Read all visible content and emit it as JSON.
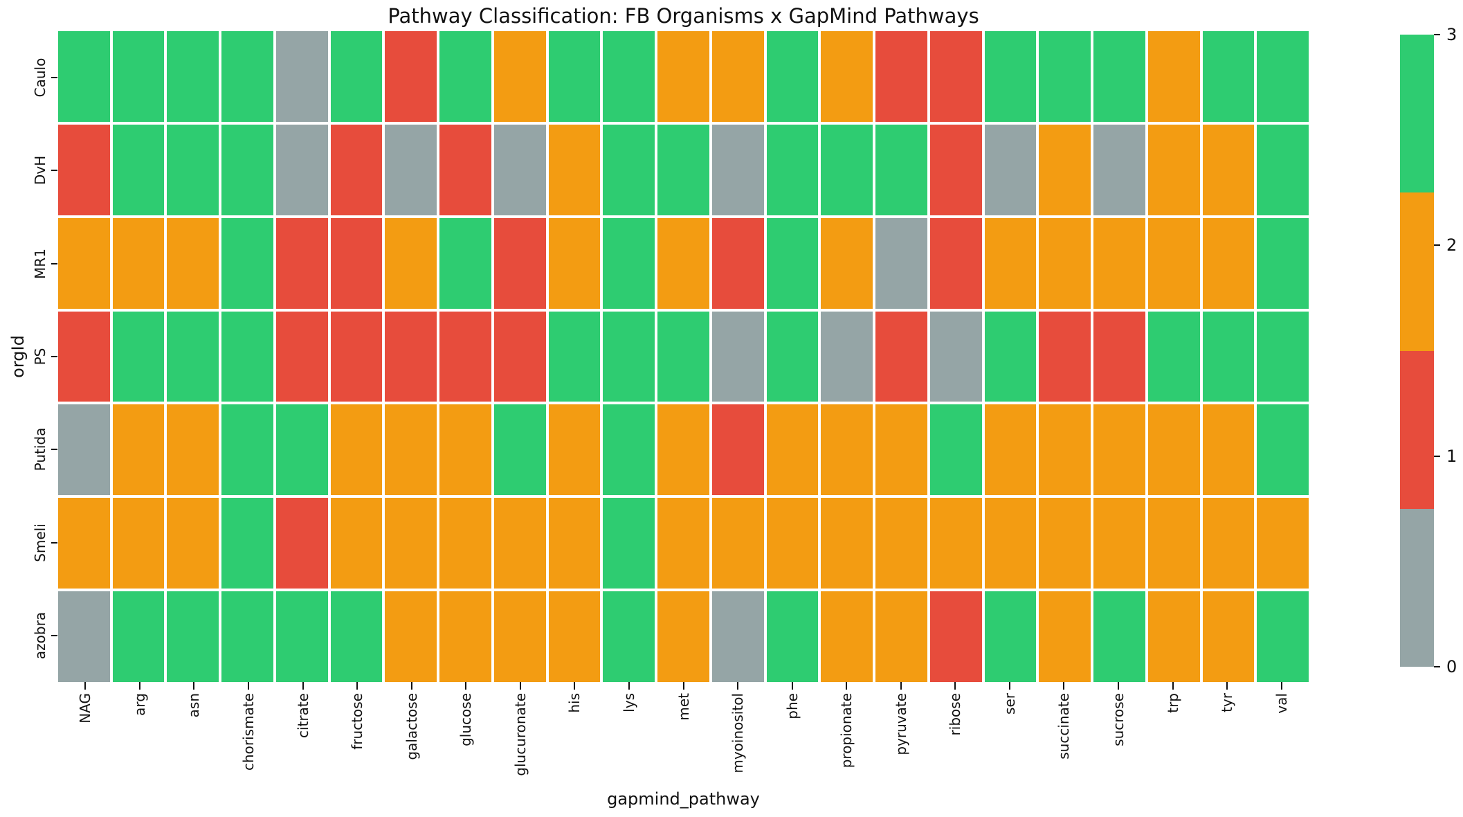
{
  "chart_data": {
    "type": "heatmap",
    "title": "Pathway Classification: FB Organisms x GapMind Pathways",
    "xlabel": "gapmind_pathway",
    "ylabel": "orgId",
    "columns": [
      "NAG",
      "arg",
      "asn",
      "chorismate",
      "citrate",
      "fructose",
      "galactose",
      "glucose",
      "glucuronate",
      "his",
      "lys",
      "met",
      "myoinositol",
      "phe",
      "propionate",
      "pyruvate",
      "ribose",
      "ser",
      "succinate",
      "sucrose",
      "trp",
      "tyr",
      "val"
    ],
    "rows": [
      "Caulo",
      "DvH",
      "MR1",
      "PS",
      "Putida",
      "Smeli",
      "azobra"
    ],
    "values": [
      [
        3,
        3,
        3,
        3,
        0,
        3,
        1,
        3,
        2,
        3,
        3,
        2,
        2,
        3,
        2,
        1,
        1,
        3,
        3,
        3,
        2,
        3,
        3
      ],
      [
        1,
        3,
        3,
        3,
        0,
        1,
        0,
        1,
        0,
        2,
        3,
        3,
        0,
        3,
        3,
        3,
        1,
        0,
        2,
        0,
        2,
        2,
        3
      ],
      [
        2,
        2,
        2,
        3,
        1,
        1,
        2,
        3,
        1,
        2,
        3,
        2,
        1,
        3,
        2,
        0,
        1,
        2,
        2,
        2,
        2,
        2,
        3
      ],
      [
        1,
        3,
        3,
        3,
        1,
        1,
        1,
        1,
        1,
        3,
        3,
        3,
        0,
        3,
        0,
        1,
        0,
        3,
        1,
        1,
        3,
        3,
        3
      ],
      [
        0,
        2,
        2,
        3,
        3,
        2,
        2,
        2,
        3,
        2,
        3,
        2,
        1,
        2,
        2,
        2,
        3,
        2,
        2,
        2,
        2,
        2,
        3
      ],
      [
        2,
        2,
        2,
        3,
        1,
        2,
        2,
        2,
        2,
        2,
        3,
        2,
        2,
        2,
        2,
        2,
        2,
        2,
        2,
        2,
        2,
        2,
        2
      ],
      [
        0,
        3,
        3,
        3,
        3,
        3,
        2,
        2,
        2,
        2,
        3,
        2,
        0,
        3,
        2,
        2,
        1,
        3,
        2,
        3,
        2,
        2,
        3
      ]
    ],
    "value_colors": {
      "0": "#95a5a6",
      "1": "#e74c3c",
      "2": "#f39c12",
      "3": "#2ecc71"
    },
    "colorbar": {
      "range": [
        0,
        3
      ],
      "ticks": [
        3,
        2,
        1,
        0
      ],
      "segments_top_to_bottom": [
        "#2ecc71",
        "#f39c12",
        "#e74c3c",
        "#95a5a6"
      ]
    },
    "grid": false,
    "cell_gap_color": "#ffffff",
    "background_color": "#ffffff",
    "legend_position": "right"
  }
}
